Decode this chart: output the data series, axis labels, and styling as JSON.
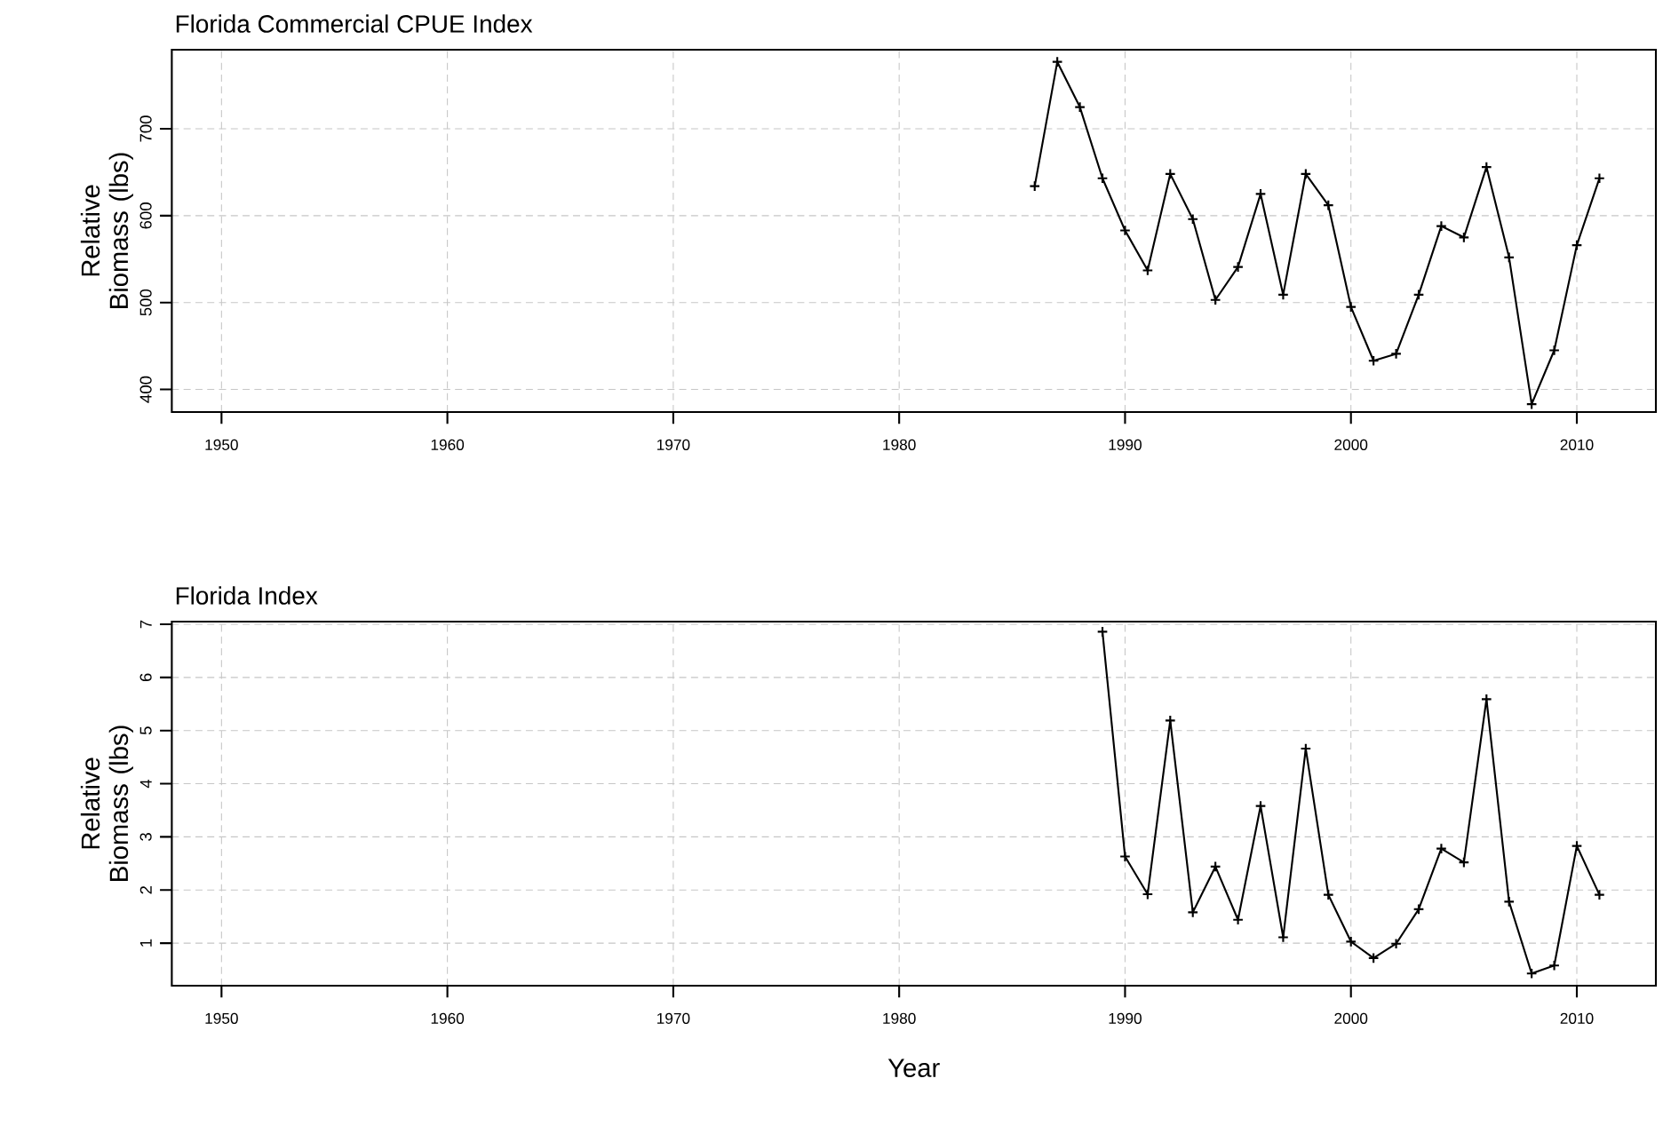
{
  "chart_data": [
    {
      "type": "line",
      "title": "Florida Commercial CPUE Index",
      "ylabel": "Relative Biomass (lbs)",
      "color": "#000000",
      "marker": "cross",
      "line_style": "solid",
      "grid": true,
      "x": [
        1986,
        1987,
        1988,
        1989,
        1990,
        1991,
        1992,
        1993,
        1994,
        1995,
        1996,
        1997,
        1998,
        1999,
        2000,
        2001,
        2002,
        2003,
        2004,
        2005,
        2006,
        2007,
        2008,
        2009,
        2010,
        2011
      ],
      "values": [
        634,
        777,
        725,
        643,
        583,
        537,
        648,
        596,
        503,
        541,
        625,
        509,
        648,
        612,
        495,
        433,
        441,
        509,
        588,
        575,
        656,
        552,
        383,
        445,
        566,
        643
      ],
      "xlim": [
        1947.8,
        2013.5
      ],
      "ylim": [
        374,
        791
      ],
      "xticks": [
        1950,
        1960,
        1970,
        1980,
        1990,
        2000,
        2010
      ],
      "yticks": [
        400,
        500,
        600,
        700
      ]
    },
    {
      "type": "line",
      "title": "Florida Index",
      "ylabel": "Relative Biomass (lbs)",
      "xlabel": "Year",
      "color": "#000000",
      "marker": "cross",
      "line_style": "solid",
      "grid": true,
      "x": [
        1989,
        1990,
        1991,
        1992,
        1993,
        1994,
        1995,
        1996,
        1997,
        1998,
        1999,
        2000,
        2001,
        2002,
        2003,
        2004,
        2005,
        2006,
        2007,
        2008,
        2009,
        2010,
        2011
      ],
      "values": [
        6.86,
        2.63,
        1.92,
        5.19,
        1.58,
        2.44,
        1.44,
        3.58,
        1.11,
        4.66,
        1.91,
        1.03,
        0.72,
        0.99,
        1.64,
        2.78,
        2.52,
        5.59,
        1.78,
        0.43,
        0.58,
        2.83,
        1.91
      ],
      "xlim": [
        1947.8,
        2013.5
      ],
      "ylim": [
        0.2,
        7.05
      ],
      "xticks": [
        1950,
        1960,
        1970,
        1980,
        1990,
        2000,
        2010
      ],
      "yticks": [
        1,
        2,
        3,
        4,
        5,
        6,
        7
      ]
    }
  ]
}
